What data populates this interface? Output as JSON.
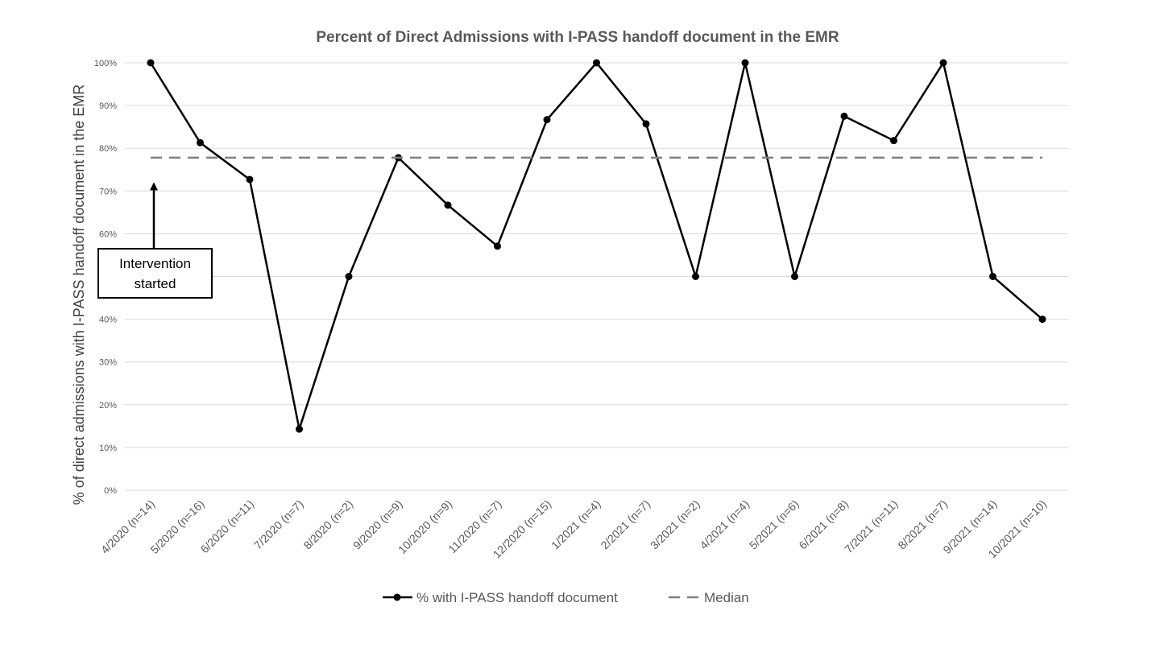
{
  "chart_data": {
    "type": "line",
    "title": "Percent of Direct Admissions with I-PASS handoff document in the EMR",
    "xlabel": "",
    "ylabel": "% of direct admissions with I-PASS handoff document in the EMR",
    "ylim": [
      0,
      100
    ],
    "yticks": [
      "0%",
      "10%",
      "20%",
      "30%",
      "40%",
      "50%",
      "60%",
      "70%",
      "80%",
      "90%",
      "100%"
    ],
    "grid": true,
    "legend_position": "bottom",
    "categories": [
      "4/2020 (n=14)",
      "5/2020 (n=16)",
      "6/2020 (n=11)",
      "7/2020 (n=7)",
      "8/2020 (n=2)",
      "9/2020 (n=9)",
      "10/2020 (n=9)",
      "11/2020 (n=7)",
      "12/2020 (n=15)",
      "1/2021 (n=4)",
      "2/2021 (n=7)",
      "3/2021 (n=2)",
      "4/2021 (n=4)",
      "5/2021 (n=6)",
      "6/2021 (n=8)",
      "7/2021 (n=11)",
      "8/2021 (n=7)",
      "9/2021 (n=14)",
      "10/2021 (n=10)"
    ],
    "series": [
      {
        "name": "% with I-PASS handoff document",
        "color": "#000000",
        "style": "solid-with-markers",
        "values": [
          100,
          81.3,
          72.7,
          14.3,
          50,
          77.8,
          66.7,
          57.1,
          86.7,
          100,
          85.7,
          50,
          100,
          50,
          87.5,
          81.8,
          100,
          50,
          40
        ]
      },
      {
        "name": "Median",
        "color": "#808080",
        "style": "dashed",
        "values": [
          77.8,
          77.8,
          77.8,
          77.8,
          77.8,
          77.8,
          77.8,
          77.8,
          77.8,
          77.8,
          77.8,
          77.8,
          77.8,
          77.8,
          77.8,
          77.8,
          77.8,
          77.8,
          77.8
        ]
      }
    ],
    "annotations": [
      {
        "text_lines": [
          "Intervention",
          "started"
        ],
        "category_index": 0,
        "arrow_to_value": 73
      }
    ]
  }
}
